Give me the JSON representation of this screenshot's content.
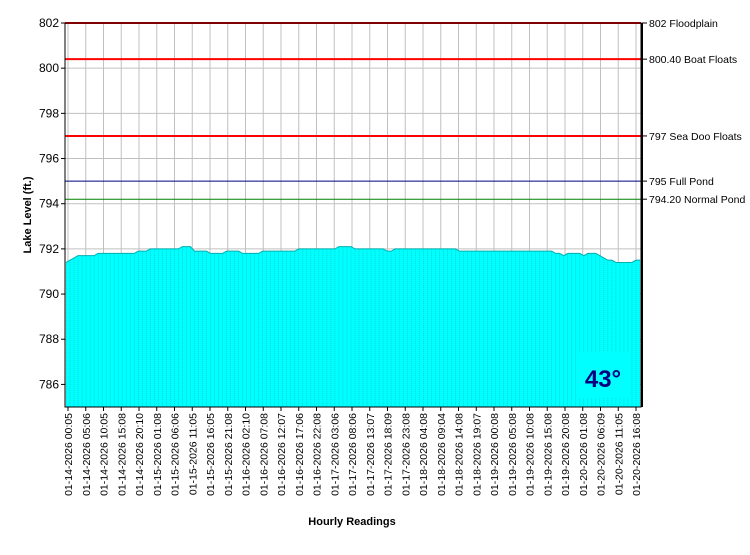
{
  "chart_data": {
    "type": "area",
    "title": "",
    "xlabel": "Hourly Readings",
    "ylabel": "Lake Level (ft.)",
    "ylim": [
      785,
      802
    ],
    "y_ticks": [
      786,
      788,
      790,
      792,
      794,
      796,
      798,
      800,
      802
    ],
    "grid": true,
    "fill_color": "#00ffff",
    "x_tick_labels": [
      "01-14-2026 00:05",
      "01-14-2026 05:06",
      "01-14-2026 10:05",
      "01-14-2026 15:08",
      "01-14-2026 20:10",
      "01-15-2026 01:08",
      "01-15-2026 06:06",
      "01-15-2026 11:05",
      "01-15-2026 16:05",
      "01-15-2026 21:08",
      "01-16-2026 02:10",
      "01-16-2026 07:08",
      "01-16-2026 12:07",
      "01-16-2026 17:06",
      "01-16-2026 22:08",
      "01-17-2026 03:06",
      "01-17-2026 08:06",
      "01-17-2026 13:07",
      "01-17-2026 18:09",
      "01-17-2026 23:08",
      "01-18-2026 04:08",
      "01-18-2026 09:04",
      "01-18-2026 14:08",
      "01-18-2026 19:07",
      "01-19-2026 00:08",
      "01-19-2026 05:08",
      "01-19-2026 10:08",
      "01-19-2026 15:08",
      "01-19-2026 20:08",
      "01-20-2026 01:08",
      "01-20-2026 06:09",
      "01-20-2026 11:05",
      "01-20-2026 16:08"
    ],
    "series": [
      {
        "values": [
          791.4,
          791.5,
          791.6,
          791.7,
          791.7,
          791.7,
          791.7,
          791.7,
          791.8,
          791.8,
          791.8,
          791.8,
          791.8,
          791.8,
          791.8,
          791.8,
          791.8,
          791.8,
          791.9,
          791.9,
          791.9,
          792.0,
          792.0,
          792.0,
          792.0,
          792.0,
          792.0,
          792.0,
          792.0,
          792.1,
          792.1,
          792.1,
          791.9,
          791.9,
          791.9,
          791.9,
          791.8,
          791.8,
          791.8,
          791.8,
          791.9,
          791.9,
          791.9,
          791.9,
          791.8,
          791.8,
          791.8,
          791.8,
          791.8,
          791.9,
          791.9,
          791.9,
          791.9,
          791.9,
          791.9,
          791.9,
          791.9,
          791.9,
          792.0,
          792.0,
          792.0,
          792.0,
          792.0,
          792.0,
          792.0,
          792.0,
          792.0,
          792.0,
          792.1,
          792.1,
          792.1,
          792.1,
          792.0,
          792.0,
          792.0,
          792.0,
          792.0,
          792.0,
          792.0,
          792.0,
          791.9,
          791.9,
          792.0,
          792.0,
          792.0,
          792.0,
          792.0,
          792.0,
          792.0,
          792.0,
          792.0,
          792.0,
          792.0,
          792.0,
          792.0,
          792.0,
          792.0,
          792.0,
          791.9,
          791.9,
          791.9,
          791.9,
          791.9,
          791.9,
          791.9,
          791.9,
          791.9,
          791.9,
          791.9,
          791.9,
          791.9,
          791.9,
          791.9,
          791.9,
          791.9,
          791.9,
          791.9,
          791.9,
          791.9,
          791.9,
          791.9,
          791.9,
          791.8,
          791.8,
          791.7,
          791.8,
          791.8,
          791.8,
          791.8,
          791.7,
          791.8,
          791.8,
          791.8,
          791.7,
          791.6,
          791.5,
          791.5,
          791.4,
          791.4,
          791.4,
          791.4,
          791.4,
          791.5,
          791.5
        ]
      }
    ],
    "reference_lines": [
      {
        "value": 802,
        "label": "802 Floodplain",
        "color": "#ff0000",
        "width": 2
      },
      {
        "value": 800.4,
        "label": "800.40 Boat Floats",
        "color": "#ff0000",
        "width": 2
      },
      {
        "value": 797,
        "label": "797 Sea Doo Floats",
        "color": "#ff0000",
        "width": 2
      },
      {
        "value": 795,
        "label": "795 Full Pond",
        "color": "#000080",
        "width": 1
      },
      {
        "value": 794.2,
        "label": "794.20 Normal Pond",
        "color": "#008000",
        "width": 1
      }
    ],
    "temperature_badge": {
      "text": "43°",
      "color": "#00ffff",
      "text_color": "#000080"
    }
  }
}
